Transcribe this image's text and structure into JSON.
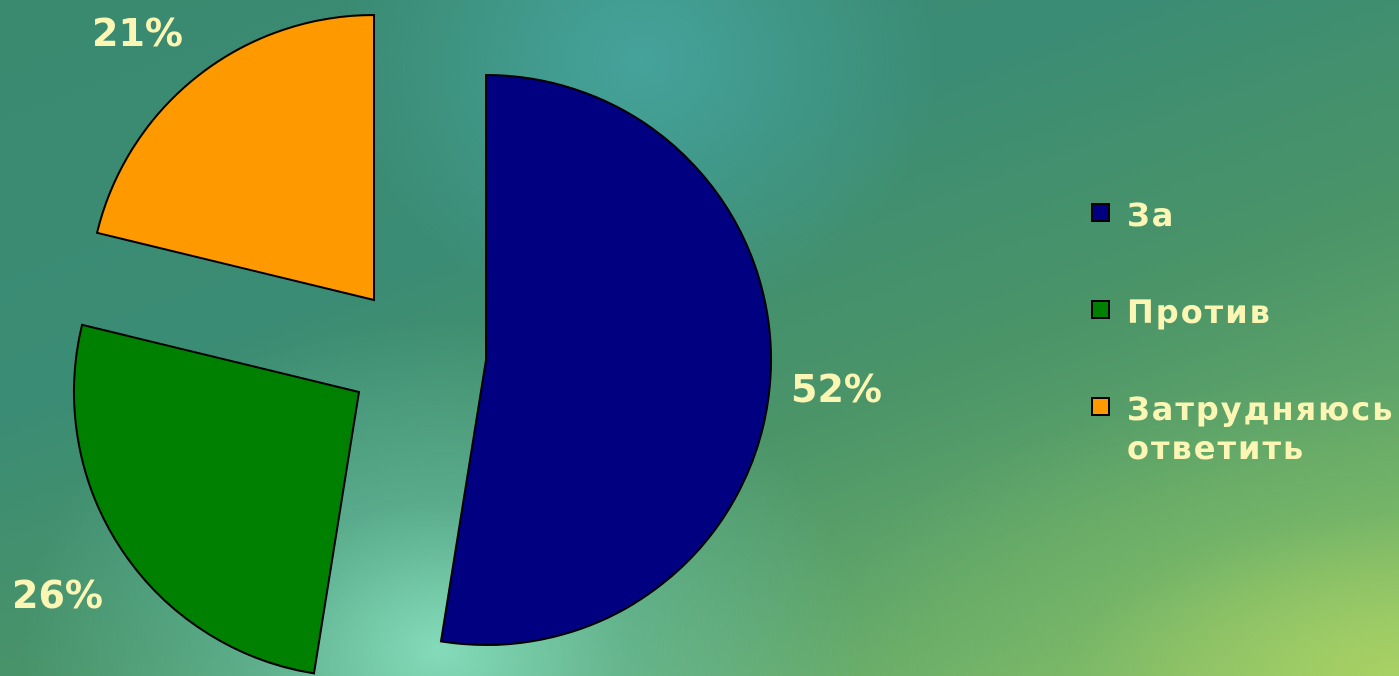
{
  "chart_data": {
    "type": "pie",
    "categories": [
      "За",
      "Против",
      "Затрудняюсь ответить"
    ],
    "values": [
      52,
      26,
      21
    ],
    "data_labels": [
      "52%",
      "26%",
      "21%"
    ],
    "colors": [
      "#000080",
      "#008000",
      "#ff9900"
    ],
    "exploded": true,
    "legend_position": "right",
    "title": ""
  },
  "colors": {
    "label_text": "#fbf6b4"
  }
}
